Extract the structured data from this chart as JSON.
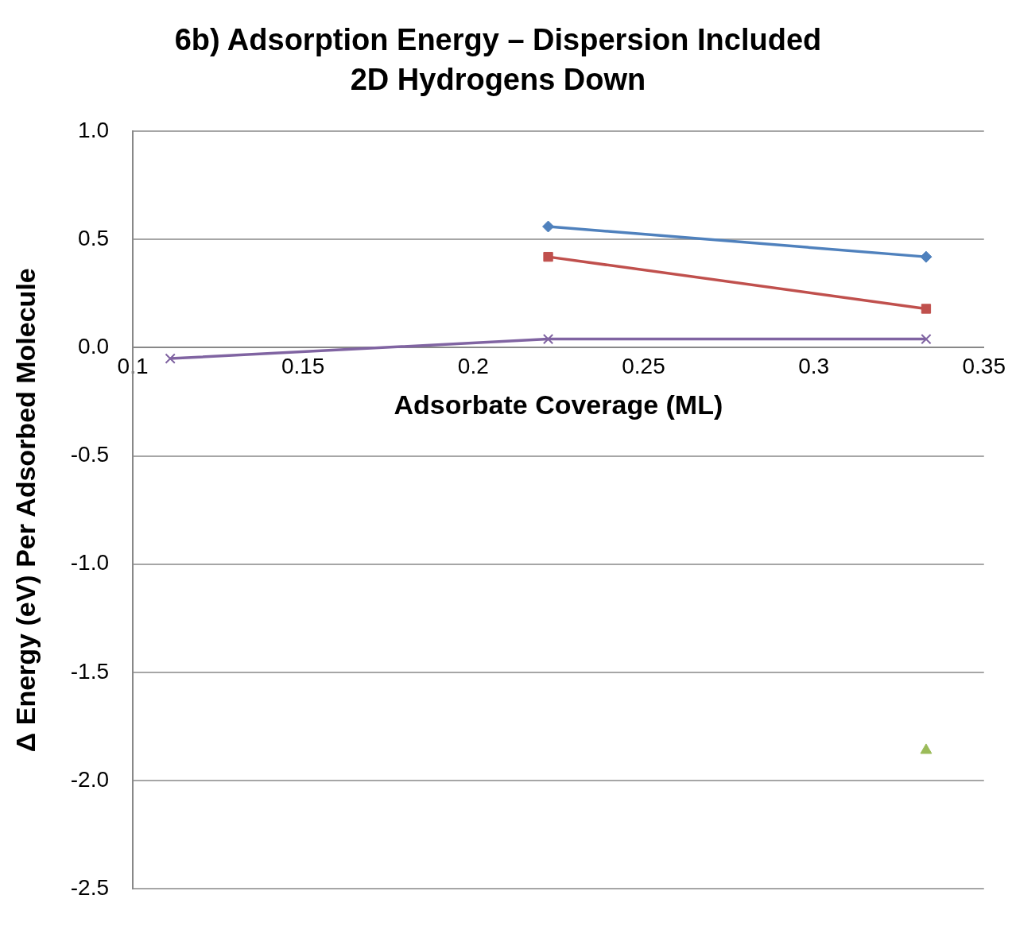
{
  "chart_data": {
    "type": "line",
    "title": "6b) Adsorption Energy – Dispersion Included",
    "subtitle": "2D Hydrogens Down",
    "xlabel": "Adsorbate Coverage (ML)",
    "ylabel": "Δ Energy (eV) Per Adsorbed Molecule",
    "x": [
      0.111,
      0.222,
      0.333
    ],
    "series": [
      {
        "color": "#4f81bd",
        "marker": "diamond",
        "values": [
          null,
          0.56,
          0.42
        ]
      },
      {
        "color": "#c0504d",
        "marker": "square",
        "values": [
          null,
          0.42,
          0.18
        ]
      },
      {
        "color": "#8064a2",
        "marker": "cross",
        "values": [
          -0.05,
          0.04,
          0.04
        ]
      },
      {
        "color": "#9bbb59",
        "marker": "triangle",
        "values": [
          null,
          null,
          -1.86
        ]
      }
    ],
    "xlim": [
      0.1,
      0.35
    ],
    "xticks": [
      0.1,
      0.15,
      0.2,
      0.25,
      0.3,
      0.35
    ],
    "ylim": [
      -2.5,
      1.0
    ],
    "yticks": [
      {
        "value": -2.5,
        "label": "-2.5"
      },
      {
        "value": -2,
        "label": "-2.0"
      },
      {
        "value": -1.5,
        "label": "-1.5"
      },
      {
        "value": -1,
        "label": "-1.0"
      },
      {
        "value": -0.5,
        "label": "-0.5"
      },
      {
        "value": 0,
        "label": "0.0"
      },
      {
        "value": 0.5,
        "label": "0.5"
      },
      {
        "value": 1,
        "label": "1.0"
      }
    ],
    "grid": "y",
    "legend": false
  }
}
